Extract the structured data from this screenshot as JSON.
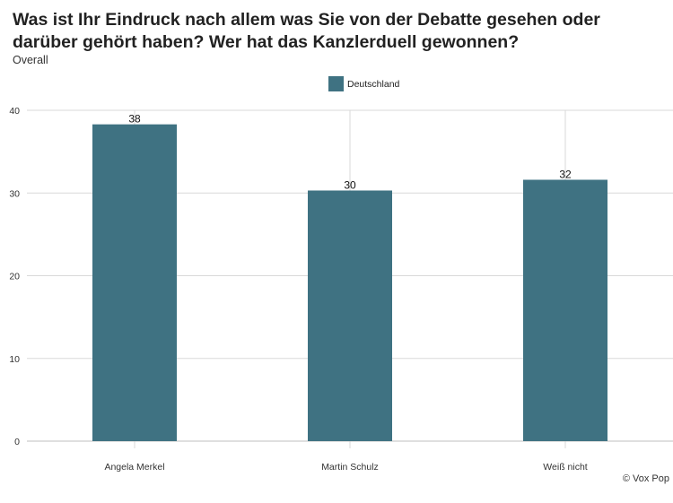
{
  "chart_data": {
    "type": "bar",
    "title": "Was ist Ihr Eindruck nach allem was Sie von der Debatte gesehen oder darüber gehört haben? Wer hat das Kanzlerduell gewonnen?",
    "subtitle": "Overall",
    "categories": [
      "Angela Merkel",
      "Martin Schulz",
      "Weiß nicht"
    ],
    "series": [
      {
        "name": "Deutschland",
        "values": [
          38.3,
          30.3,
          31.6
        ],
        "labels": [
          "38",
          "30",
          "32"
        ]
      }
    ],
    "ylim": [
      0,
      40
    ],
    "yticks": [
      0,
      10,
      20,
      30,
      40
    ],
    "grid": true,
    "legend_position": "top-center",
    "bar_color": "#3f7282",
    "credit": "© Vox Pop"
  }
}
